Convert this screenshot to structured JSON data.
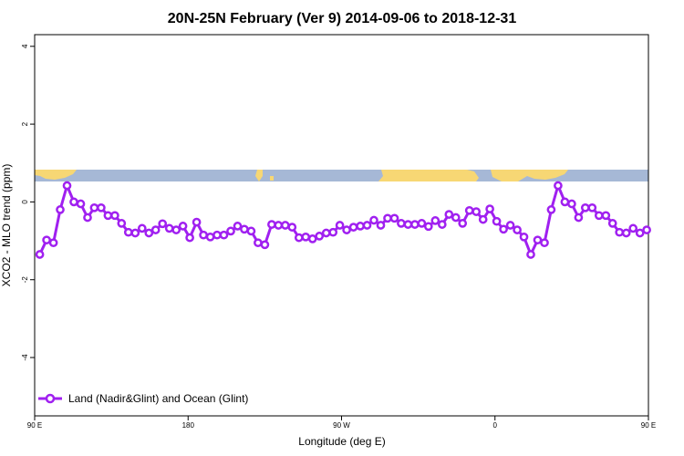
{
  "chart_data": {
    "type": "line",
    "title": "20N-25N February (Ver 9)   2014-09-06 to 2018-12-31",
    "xlabel": "Longitude (deg E)",
    "ylabel": "XCO2 - MLO trend (ppm)",
    "xlim": [
      90,
      450
    ],
    "ylim": [
      -5.5,
      4.3
    ],
    "x_ticks": [
      {
        "value": 90,
        "label": "90 E"
      },
      {
        "value": 180,
        "label": "180"
      },
      {
        "value": 270,
        "label": "90 W"
      },
      {
        "value": 360,
        "label": "0"
      },
      {
        "value": 450,
        "label": "90 E"
      }
    ],
    "y_ticks": [
      -4,
      -2,
      0,
      2,
      4
    ],
    "grid": false,
    "legend_position": "bottom-left",
    "colors": {
      "series": "#a020f0",
      "map_ocean": "#a6b8d6",
      "map_land": "#f7d774"
    },
    "series": [
      {
        "name": "Land (Nadir&Glint) and Ocean (Glint)",
        "x": [
          93,
          97,
          101,
          105,
          109,
          113,
          117,
          121,
          125,
          129,
          133,
          137,
          141,
          145,
          149,
          153,
          157,
          161,
          165,
          169,
          173,
          177,
          181,
          185,
          189,
          193,
          197,
          201,
          205,
          209,
          213,
          217,
          221,
          225,
          229,
          233,
          237,
          241,
          245,
          249,
          253,
          257,
          261,
          265,
          269,
          273,
          277,
          281,
          285,
          289,
          293,
          297,
          301,
          305,
          309,
          313,
          317,
          321,
          325,
          329,
          333,
          337,
          341,
          345,
          349,
          353,
          357,
          361,
          365,
          369,
          373,
          377,
          381,
          385,
          389,
          393,
          397,
          401,
          405,
          409,
          413,
          417,
          421,
          425,
          429,
          433,
          437,
          441,
          445,
          449
        ],
        "y": [
          -1.35,
          -0.98,
          -1.05,
          -0.2,
          0.42,
          0.0,
          -0.05,
          -0.4,
          -0.15,
          -0.15,
          -0.35,
          -0.35,
          -0.55,
          -0.78,
          -0.8,
          -0.68,
          -0.8,
          -0.72,
          -0.56,
          -0.68,
          -0.72,
          -0.62,
          -0.92,
          -0.52,
          -0.85,
          -0.9,
          -0.85,
          -0.85,
          -0.75,
          -0.62,
          -0.7,
          -0.75,
          -1.05,
          -1.1,
          -0.58,
          -0.6,
          -0.6,
          -0.65,
          -0.92,
          -0.9,
          -0.95,
          -0.88,
          -0.8,
          -0.78,
          -0.6,
          -0.72,
          -0.65,
          -0.62,
          -0.6,
          -0.47,
          -0.6,
          -0.42,
          -0.42,
          -0.55,
          -0.58,
          -0.58,
          -0.55,
          -0.63,
          -0.48,
          -0.58,
          -0.32,
          -0.4,
          -0.55,
          -0.22,
          -0.25,
          -0.45,
          -0.18,
          -0.5,
          -0.7,
          -0.6,
          -0.72,
          -0.9,
          -1.35,
          -0.98,
          -1.05,
          -0.2,
          0.42,
          0.0,
          -0.05,
          -0.4,
          -0.15,
          -0.15,
          -0.35,
          -0.35,
          -0.55,
          -0.78,
          -0.8,
          -0.68,
          -0.8,
          -0.72
        ]
      }
    ]
  }
}
